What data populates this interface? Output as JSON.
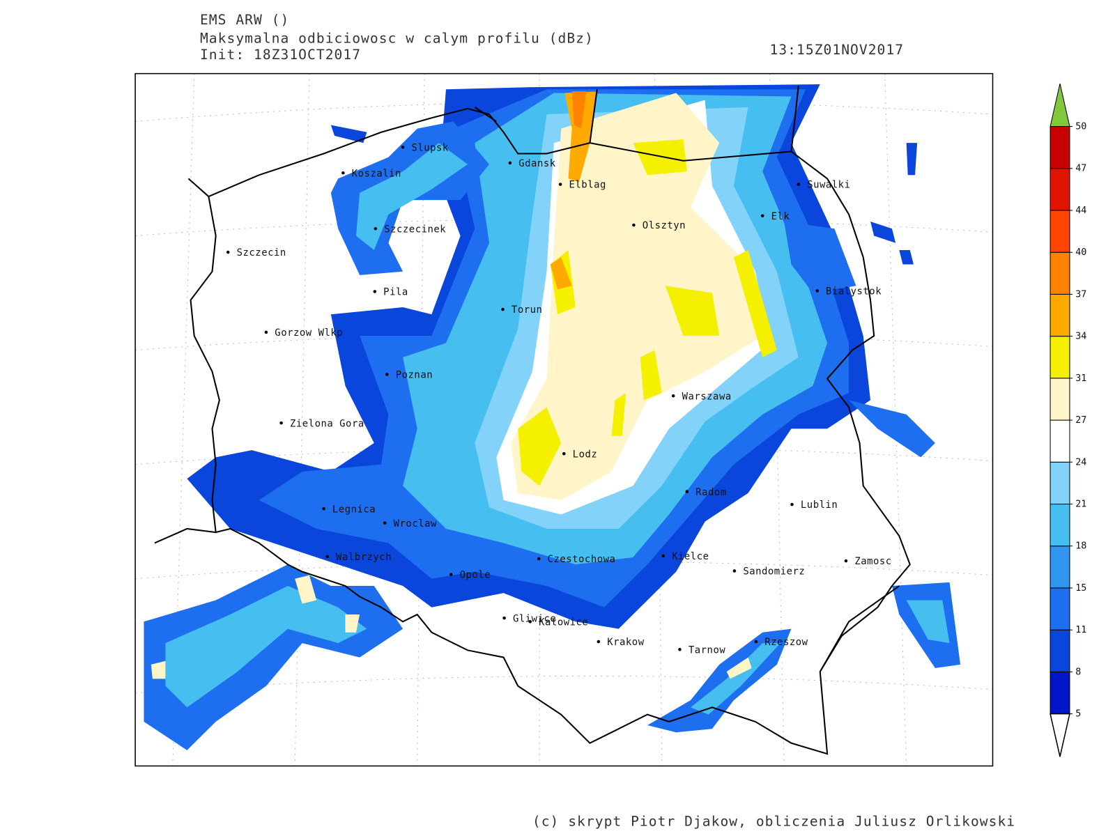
{
  "header": {
    "model": "EMS ARW ()",
    "field": "Maksymalna odbiciowosc w calym profilu (dBz)",
    "init": "Init: 18Z31OCT2017",
    "valid": "13:15Z01NOV2017"
  },
  "cities": [
    "Slupsk",
    "Koszalin",
    "Gdansk",
    "Elblag",
    "Suwalki",
    "Szczecinek",
    "Olsztyn",
    "Elk",
    "Szczecin",
    "Pila",
    "Bialystok",
    "Torun",
    "Gorzow Wlkp",
    "Poznan",
    "Warszawa",
    "Zielona Gora",
    "Lodz",
    "Radom",
    "Legnica",
    "Lublin",
    "Wroclaw",
    "Kielce",
    "Walbrzych",
    "Czestochowa",
    "Zamosc",
    "Sandomierz",
    "Opole",
    "Gliwice",
    "Katowice",
    "Krakow",
    "Tarnow",
    "Rzeszow"
  ],
  "legend": {
    "ticks": [
      5,
      8,
      11,
      15,
      18,
      21,
      24,
      27,
      31,
      34,
      37,
      40,
      44,
      47,
      50
    ],
    "colors": [
      "#0014c8",
      "#0a46dc",
      "#1e6ef0",
      "#3296f0",
      "#46bef0",
      "#82d2fa",
      "#ffffff",
      "#fff5c8",
      "#f5f000",
      "#ffaa00",
      "#ff8200",
      "#ff4600",
      "#e11400",
      "#c80000"
    ],
    "over_color": "#82c83c",
    "under_color": "#ffffff"
  },
  "footer": "(c) skrypt Piotr Djakow, obliczenia Juliusz Orlikowski"
}
